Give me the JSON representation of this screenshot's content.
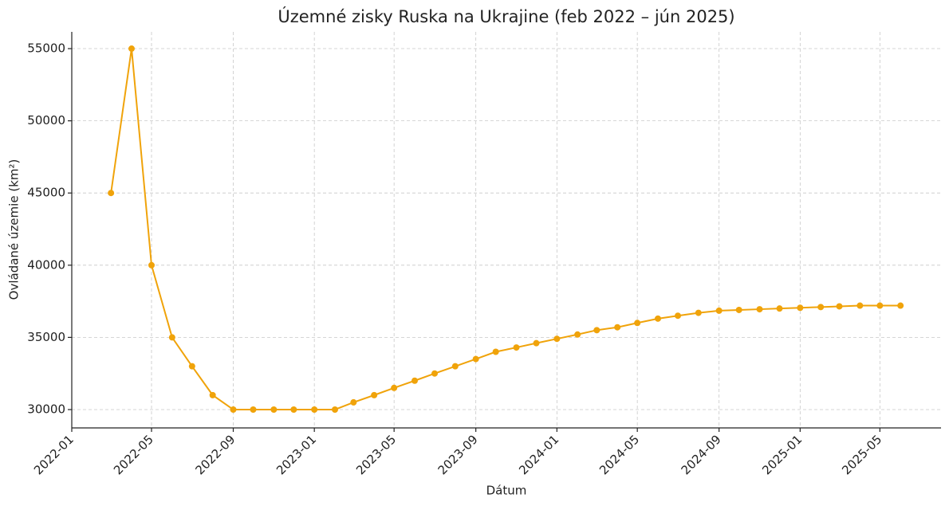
{
  "chart_data": {
    "type": "line",
    "title": "Územné zisky Ruska na Ukrajine (feb 2022 – jún 2025)",
    "x_label": "Dátum",
    "y_label": "Ovládané územie (km²)",
    "x": [
      "2022-03",
      "2022-04",
      "2022-05",
      "2022-06",
      "2022-07",
      "2022-08",
      "2022-09",
      "2022-10",
      "2022-11",
      "2022-12",
      "2023-01",
      "2023-02",
      "2023-03",
      "2023-04",
      "2023-05",
      "2023-06",
      "2023-07",
      "2023-08",
      "2023-09",
      "2023-10",
      "2023-11",
      "2023-12",
      "2024-01",
      "2024-02",
      "2024-03",
      "2024-04",
      "2024-05",
      "2024-06",
      "2024-07",
      "2024-08",
      "2024-09",
      "2024-10",
      "2024-11",
      "2024-12",
      "2025-01",
      "2025-02",
      "2025-03",
      "2025-04",
      "2025-05",
      "2025-06"
    ],
    "values": [
      45000,
      55000,
      40000,
      35000,
      33000,
      31000,
      30000,
      30000,
      30000,
      30000,
      30000,
      30000,
      30500,
      31000,
      31500,
      32000,
      32500,
      33000,
      33500,
      34000,
      34300,
      34600,
      34900,
      35200,
      35500,
      35700,
      36000,
      36300,
      36500,
      36700,
      36850,
      36900,
      36950,
      37000,
      37050,
      37100,
      37150,
      37200,
      37200,
      37200
    ],
    "color": "#f0a30a",
    "xlim": [
      "2022-01",
      "2025-08"
    ],
    "xticks": [
      "2022-01",
      "2022-05",
      "2022-09",
      "2023-01",
      "2023-05",
      "2023-09",
      "2024-01",
      "2024-05",
      "2024-09",
      "2025-01",
      "2025-05"
    ],
    "ylim": [
      28730,
      56160
    ],
    "yticks": [
      30000,
      35000,
      40000,
      45000,
      50000,
      55000
    ],
    "grid": true
  }
}
